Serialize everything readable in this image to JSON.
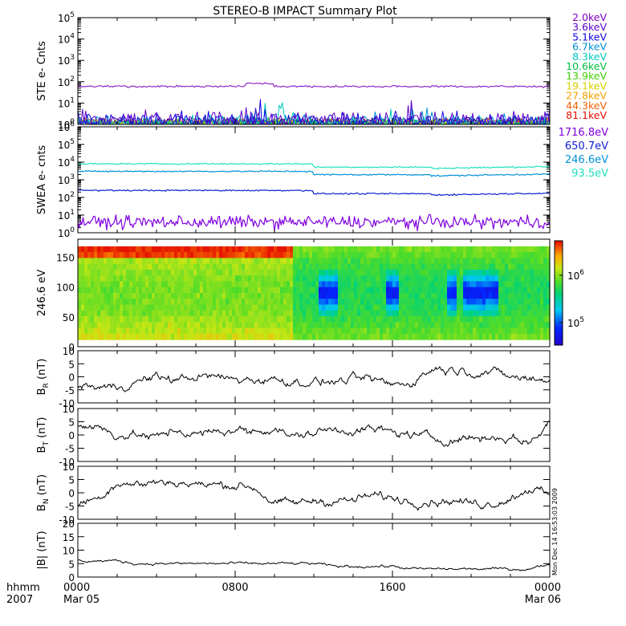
{
  "title": "STEREO-B IMPACT Summary Plot",
  "colors": {
    "frame": "#000000",
    "trace": "#000000",
    "ste_channels": [
      "#8000c0",
      "#5a00c8",
      "#1000e0",
      "#0090d0",
      "#00c8c0",
      "#00c040",
      "#40d000",
      "#d8d000",
      "#f0a000",
      "#f06000",
      "#e01000"
    ],
    "swea_channels": [
      "#8000e0",
      "#1020d0",
      "#0090d8",
      "#20e0c0"
    ]
  },
  "chart_data": [
    {
      "id": "ste",
      "type": "line",
      "ylabel": "STE e- Cnts",
      "yscale": "log",
      "ylim": [
        1,
        100000
      ],
      "yticks": [
        "10^0",
        "10^1",
        "10^2",
        "10^3",
        "10^4",
        "10^5"
      ],
      "series": [
        {
          "name": "2.0keV",
          "base": 60,
          "noise": 0.05
        },
        {
          "name": "3.6keV",
          "base": 1.6,
          "noise": 0.45
        },
        {
          "name": "5.1keV",
          "base": 1.4,
          "noise": 0.4
        },
        {
          "name": "6.7keV",
          "base": 1.3,
          "noise": 0.35
        },
        {
          "name": "8.3keV",
          "base": 1.2,
          "noise": 0.3
        },
        {
          "name": "10.6keV",
          "base": 1.15,
          "noise": 0.25
        },
        {
          "name": "13.9keV",
          "base": 1.1,
          "noise": 0.2
        },
        {
          "name": "19.1keV",
          "base": 1.1,
          "noise": 0.15
        },
        {
          "name": "27.8keV",
          "base": 1.3,
          "noise": 0.15
        },
        {
          "name": "44.3keV",
          "base": 1.5,
          "noise": 0.12
        },
        {
          "name": "81.1keV",
          "base": 1.2,
          "noise": 0.1
        }
      ]
    },
    {
      "id": "swea",
      "type": "line",
      "ylabel": "SWEA e- cnts",
      "yscale": "log",
      "ylim": [
        1,
        1000000
      ],
      "yticks": [
        "10^0",
        "10^1",
        "10^2",
        "10^3",
        "10^4",
        "10^5",
        "10^6"
      ],
      "series": [
        {
          "name": "1716.8eV",
          "base": 4
        },
        {
          "name": "650.7eV",
          "base": 250
        },
        {
          "name": "246.6eV",
          "base": 3000
        },
        {
          "name": "93.5eV",
          "base": 8000
        }
      ]
    },
    {
      "id": "pad",
      "type": "heatmap",
      "ylabel": "246.6 eV",
      "ylim": [
        0,
        180
      ],
      "yticks": [
        "0",
        "50",
        "100",
        "150"
      ],
      "colorbar_ticks": [
        "10^5",
        "10^6"
      ]
    },
    {
      "id": "br",
      "type": "line",
      "ylabel": "B_R (nT)",
      "ylim": [
        -10,
        10
      ],
      "yticks": [
        "-10",
        "-5",
        "0",
        "5",
        "10"
      ],
      "x": [
        0,
        1,
        2,
        3,
        4,
        5,
        6,
        7,
        8,
        9,
        10,
        11,
        12,
        13,
        14,
        15,
        16,
        17,
        18,
        19,
        20,
        21,
        22,
        23,
        24
      ],
      "values": [
        -3,
        -4,
        -4,
        -2,
        0,
        -1,
        0,
        0,
        -1,
        -1,
        -1,
        -2,
        -2,
        -2,
        -1,
        -1,
        -3,
        -2,
        3,
        3,
        2,
        2,
        0,
        -1,
        -1
      ]
    },
    {
      "id": "bt",
      "type": "line",
      "ylabel": "B_T (nT)",
      "ylim": [
        -10,
        10
      ],
      "yticks": [
        "-10",
        "-5",
        "0",
        "5",
        "10"
      ],
      "x": [
        0,
        1,
        2,
        3,
        4,
        5,
        6,
        7,
        8,
        9,
        10,
        11,
        12,
        13,
        14,
        15,
        16,
        17,
        18,
        19,
        20,
        21,
        22,
        23,
        24
      ],
      "values": [
        4,
        3,
        0,
        0,
        -1,
        2,
        0,
        1,
        2,
        1,
        3,
        -1,
        1,
        2,
        2,
        2,
        1,
        0,
        -1,
        -2,
        -1,
        -1,
        -1,
        -3,
        5
      ]
    },
    {
      "id": "bn",
      "type": "line",
      "ylabel": "B_N (nT)",
      "ylim": [
        -10,
        10
      ],
      "yticks": [
        "-10",
        "-5",
        "0",
        "5",
        "10"
      ],
      "x": [
        0,
        1,
        2,
        3,
        4,
        5,
        6,
        7,
        8,
        9,
        10,
        11,
        12,
        13,
        14,
        15,
        16,
        17,
        18,
        19,
        20,
        21,
        22,
        23,
        24
      ],
      "values": [
        -4,
        -2,
        4,
        3,
        4,
        4,
        3,
        3,
        3,
        2,
        -4,
        -4,
        -3,
        -3,
        -3,
        -1,
        -2,
        -3,
        -3,
        -3,
        -4,
        -4,
        -2,
        2,
        -1
      ]
    },
    {
      "id": "bmag",
      "type": "line",
      "ylabel": "|B| (nT)",
      "ylim": [
        0,
        20
      ],
      "yticks": [
        "0",
        "5",
        "10",
        "15",
        "20"
      ],
      "x": [
        0,
        1,
        2,
        3,
        4,
        5,
        6,
        7,
        8,
        9,
        10,
        11,
        12,
        13,
        14,
        15,
        16,
        17,
        18,
        19,
        20,
        21,
        22,
        23,
        24
      ],
      "values": [
        6,
        6,
        6,
        5,
        5,
        5,
        5,
        5,
        5,
        5,
        5,
        5,
        5,
        4,
        4,
        4,
        4,
        3,
        3,
        3,
        3,
        3,
        3,
        3,
        5
      ]
    }
  ],
  "xaxis": {
    "row1_label": "hhmm",
    "row2_label": "2007",
    "ticks": [
      {
        "t": "0000",
        "d": "Mar 05",
        "h": 0
      },
      {
        "t": "0800",
        "d": "",
        "h": 8
      },
      {
        "t": "1600",
        "d": "",
        "h": 16
      },
      {
        "t": "0000",
        "d": "Mar 06",
        "h": 24
      }
    ]
  },
  "stamp": "Mon Dec 14 16:53:03 2009"
}
